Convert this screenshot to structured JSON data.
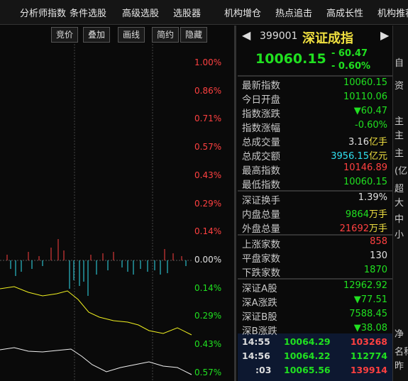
{
  "menu": [
    "分析师指数",
    "条件选股",
    "高级选股",
    "选股器",
    "机构增仓",
    "热点追击",
    "高成长性",
    "机构推荐"
  ],
  "toolbar": [
    "竞价",
    "叠加",
    "画线",
    "简约",
    "隐藏"
  ],
  "axis_labels": [
    {
      "text": "1.00%",
      "color": "#ff4040"
    },
    {
      "text": "0.86%",
      "color": "#ff4040"
    },
    {
      "text": "0.71%",
      "color": "#ff4040"
    },
    {
      "text": "0.57%",
      "color": "#ff4040"
    },
    {
      "text": "0.43%",
      "color": "#ff4040"
    },
    {
      "text": "0.29%",
      "color": "#ff4040"
    },
    {
      "text": "0.14%",
      "color": "#ff4040"
    },
    {
      "text": "0.00%",
      "color": "#e0e0e0"
    },
    {
      "text": "0.14%",
      "color": "#20e020"
    },
    {
      "text": "0.29%",
      "color": "#20e020"
    },
    {
      "text": "0.43%",
      "color": "#20e020"
    },
    {
      "text": "0.57%",
      "color": "#20e020"
    }
  ],
  "quote": {
    "code": "399001",
    "name": "深证成指",
    "price": "10060.15",
    "change": "- 60.47",
    "pct": "- 0.60%"
  },
  "stats": [
    {
      "label": "最新指数",
      "value": "10060.15",
      "color": "#20e020"
    },
    {
      "label": "今日开盘",
      "value": "10110.06",
      "color": "#20e020"
    },
    {
      "label": "指数涨跌",
      "value": "▼60.47",
      "color": "#20e020"
    },
    {
      "label": "指数涨幅",
      "value": "-0.60%",
      "color": "#20e020"
    },
    {
      "label": "总成交量",
      "value": "3.16",
      "unit": "亿手",
      "color": "#e0e0e0"
    },
    {
      "label": "总成交额",
      "value": "3956.15",
      "unit": "亿元",
      "color": "#30e0f0"
    },
    {
      "label": "最高指数",
      "value": "10146.89",
      "color": "#ff4040"
    },
    {
      "label": "最低指数",
      "value": "10060.15",
      "color": "#20e020"
    },
    {
      "label": "深证换手",
      "value": "1.39%",
      "color": "#e0e0e0"
    },
    {
      "label": "内盘总量",
      "value": "9864",
      "unit": "万手",
      "color": "#20e020"
    },
    {
      "label": "外盘总量",
      "value": "21692",
      "unit": "万手",
      "color": "#ff4040"
    },
    {
      "label": "上涨家数",
      "value": "858",
      "color": "#ff4040"
    },
    {
      "label": "平盘家数",
      "value": "130",
      "color": "#e0e0e0"
    },
    {
      "label": "下跌家数",
      "value": "1870",
      "color": "#20e020"
    },
    {
      "label": "深证A股",
      "value": "12962.92",
      "color": "#20e020"
    },
    {
      "label": "深A涨跌",
      "value": "▼77.51",
      "color": "#20e020"
    },
    {
      "label": "深证B股",
      "value": "7588.45",
      "color": "#20e020"
    },
    {
      "label": "深B涨跌",
      "value": "▼38.08",
      "color": "#20e020"
    }
  ],
  "ticks": [
    [
      "14:55",
      "10064.29",
      "103268"
    ],
    [
      "14:56",
      "10064.22",
      "112774"
    ],
    [
      ":03",
      "10065.56",
      "139914"
    ]
  ],
  "side": [
    "自",
    "资",
    "主",
    "主",
    "主",
    "(亿",
    "超",
    "大",
    "中",
    "小",
    "净",
    "名称",
    "昨"
  ]
}
